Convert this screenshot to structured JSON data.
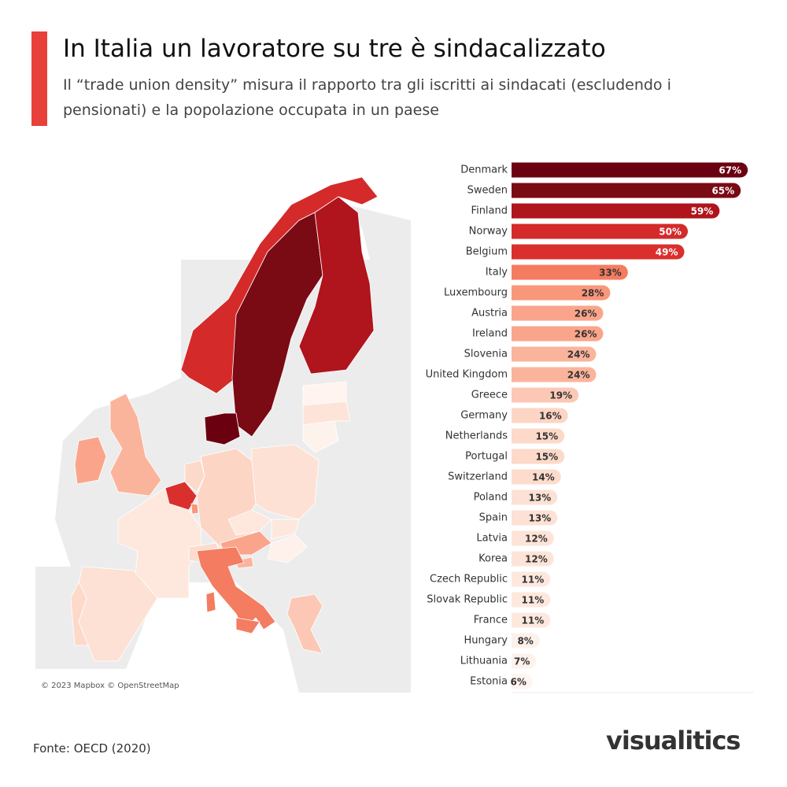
{
  "chart_data": {
    "type": "bar",
    "title": "In Italia un lavoratore su tre è sindacalizzato",
    "subtitle": "Il “trade union density” misura il rapporto tra gli iscritti ai sindacati (escludendo i pensionati) e la popolazione occupata in un paese",
    "source": "Fonte: OECD (2020)",
    "attribution": "© 2023 Mapbox © OpenStreetMap",
    "logo": "visualitics",
    "categories": [
      "Denmark",
      "Sweden",
      "Finland",
      "Norway",
      "Belgium",
      "Italy",
      "Luxembourg",
      "Austria",
      "Ireland",
      "Slovenia",
      "United Kingdom",
      "Greece",
      "Germany",
      "Netherlands",
      "Portugal",
      "Switzerland",
      "Poland",
      "Spain",
      "Latvia",
      "Korea",
      "Czech Republic",
      "Slovak Republic",
      "France",
      "Hungary",
      "Lithuania",
      "Estonia"
    ],
    "values": [
      67,
      65,
      59,
      50,
      49,
      33,
      28,
      26,
      26,
      24,
      24,
      19,
      16,
      15,
      15,
      14,
      13,
      13,
      12,
      12,
      11,
      11,
      11,
      8,
      7,
      6
    ],
    "value_labels": [
      "67%",
      "65%",
      "59%",
      "50%",
      "49%",
      "33%",
      "28%",
      "26%",
      "26%",
      "24%",
      "24%",
      "19%",
      "16%",
      "15%",
      "15%",
      "14%",
      "13%",
      "13%",
      "12%",
      "12%",
      "11%",
      "11%",
      "11%",
      "8%",
      "7%",
      "6%"
    ],
    "colors": [
      "#6b0010",
      "#7a0a14",
      "#b0141c",
      "#d42a2a",
      "#d9302e",
      "#f47c60",
      "#f9977b",
      "#faa58b",
      "#faa58b",
      "#fbb49c",
      "#fbb49c",
      "#fcc8b5",
      "#fdd5c4",
      "#fdd9c9",
      "#fdd9c9",
      "#fddccd",
      "#fde1d4",
      "#fde1d4",
      "#fee4d8",
      "#fee4d8",
      "#fee8de",
      "#fee8de",
      "#fee8de",
      "#fef0ea",
      "#fef2ed",
      "#fff4ef"
    ]
  }
}
